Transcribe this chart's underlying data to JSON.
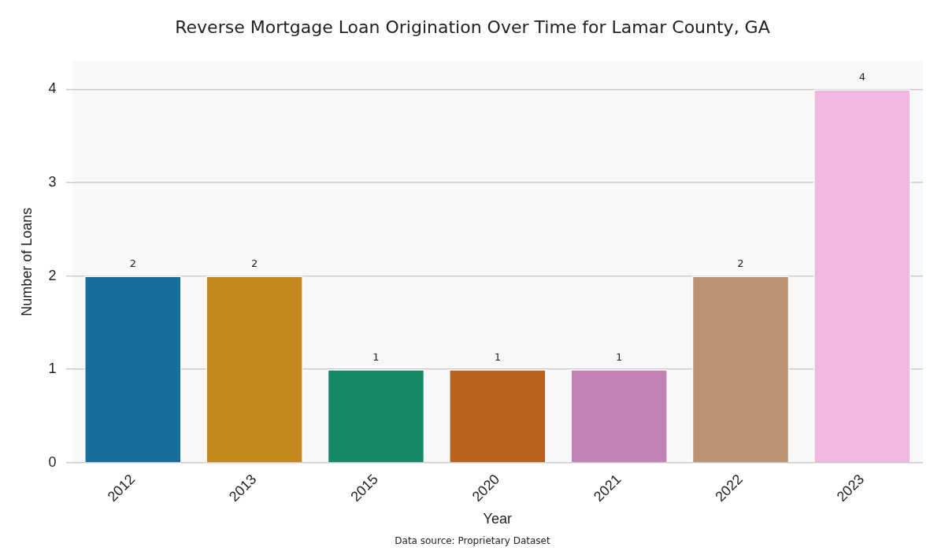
{
  "chart_data": {
    "type": "bar",
    "title": "Reverse Mortgage Loan Origination Over Time for Lamar County, GA",
    "xlabel": "Year",
    "ylabel": "Number of Loans",
    "categories": [
      "2012",
      "2013",
      "2015",
      "2020",
      "2021",
      "2022",
      "2023"
    ],
    "values": [
      2,
      2,
      1,
      1,
      1,
      2,
      4
    ],
    "colors": [
      "#176d9c",
      "#c4881f",
      "#168a68",
      "#b9611e",
      "#c183b5",
      "#bc9270",
      "#f0b8e0"
    ],
    "ylim": [
      0,
      4.3
    ],
    "yticks": [
      0,
      1,
      2,
      3,
      4
    ],
    "grid": "y",
    "legend": false,
    "data_labels": true,
    "annotations": [
      "Data source: Proprietary Dataset"
    ]
  }
}
